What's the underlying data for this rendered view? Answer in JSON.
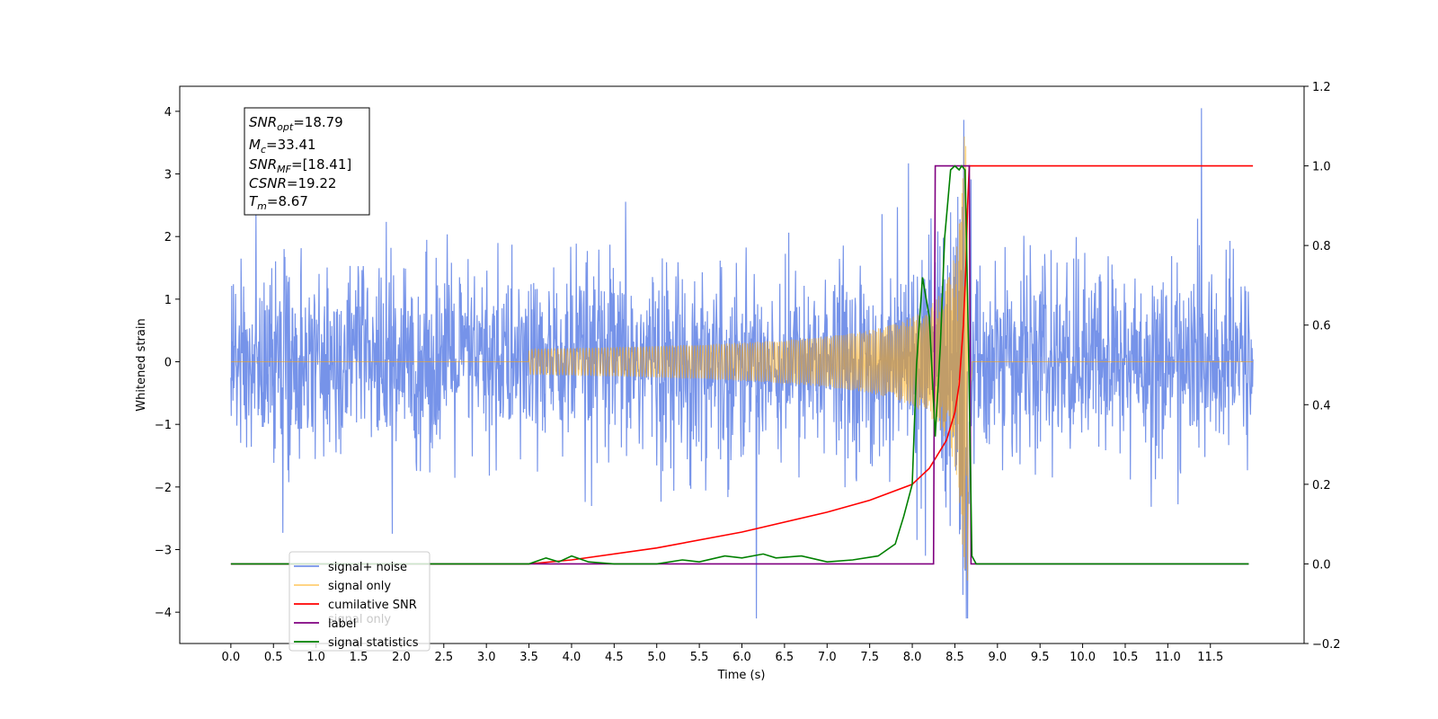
{
  "chart_data": {
    "type": "line",
    "xlabel": "Time (s)",
    "ylabel": "Whitened strain",
    "xlim": [
      -0.6,
      12.6
    ],
    "ylim": [
      -4.5,
      4.4
    ],
    "y2lim": [
      -0.2,
      1.2
    ],
    "x_ticks": [
      "0.0",
      "0.5",
      "1.0",
      "1.5",
      "2.0",
      "2.5",
      "3.0",
      "3.5",
      "4.0",
      "4.5",
      "5.0",
      "5.5",
      "6.0",
      "6.5",
      "7.0",
      "7.5",
      "8.0",
      "8.5",
      "9.0",
      "9.5",
      "10.0",
      "10.5",
      "11.0",
      "11.5"
    ],
    "y_ticks": [
      "4",
      "3",
      "2",
      "1",
      "0",
      "−1",
      "−2",
      "−3",
      "−4"
    ],
    "y2_ticks": [
      "1.2",
      "1.0",
      "0.8",
      "0.6",
      "0.4",
      "0.2",
      "0.0",
      "−0.2"
    ],
    "grid": false,
    "legend_position": "lower-left",
    "legend": [
      "signal+ noise",
      "signal only",
      "cumilative SNR",
      "label",
      "signal statistics"
    ],
    "hidden_legend_text": "signal only",
    "annotation": {
      "snr_opt": {
        "main": "SNR",
        "sub": "opt",
        "value": "=18.79"
      },
      "mc": {
        "main": "M",
        "sub": "c",
        "value": "=33.41"
      },
      "snr_mf": {
        "main": "SNR",
        "sub": "MF",
        "value": "=[18.41]"
      },
      "csnr": {
        "main": "CSNR",
        "value": "=19.22"
      },
      "tm": {
        "main": "T",
        "sub": "m",
        "value": "=8.67"
      }
    },
    "series": [
      {
        "name": "signal+ noise",
        "axis": "left",
        "color": "#4169e1",
        "description": "whitened noise plus injected chirp, sampled 0–12 s, amplitude approx ±2 with spikes to ±3.8"
      },
      {
        "name": "signal only",
        "axis": "left",
        "color": "#ffa500",
        "chirp_start": 3.5,
        "merger_time": 8.65,
        "peak_amplitude": 3.8,
        "end": 12.0
      },
      {
        "name": "cumilative SNR",
        "axis": "right",
        "color": "#ff0000",
        "x": [
          0.0,
          3.5,
          4.0,
          5.0,
          6.0,
          7.0,
          7.5,
          8.0,
          8.2,
          8.4,
          8.5,
          8.55,
          8.6,
          8.63,
          8.65,
          8.67,
          12.0
        ],
        "y": [
          0.0,
          0.0,
          0.01,
          0.04,
          0.08,
          0.13,
          0.16,
          0.2,
          0.24,
          0.31,
          0.38,
          0.45,
          0.6,
          0.75,
          0.9,
          1.0,
          1.0
        ]
      },
      {
        "name": "label",
        "axis": "right",
        "color": "#800080",
        "x": [
          0.0,
          8.25,
          8.27,
          8.67,
          8.69,
          11.95
        ],
        "y": [
          0.0,
          0.0,
          1.0,
          1.0,
          0.0,
          0.0
        ]
      },
      {
        "name": "signal statistics",
        "axis": "right",
        "color": "#008000",
        "x": [
          0.0,
          3.0,
          3.5,
          3.7,
          3.85,
          4.0,
          4.2,
          4.5,
          5.0,
          5.3,
          5.5,
          5.8,
          6.0,
          6.25,
          6.4,
          6.7,
          7.0,
          7.3,
          7.6,
          7.8,
          7.9,
          8.0,
          8.05,
          8.12,
          8.2,
          8.27,
          8.33,
          8.38,
          8.45,
          8.5,
          8.55,
          8.58,
          8.62,
          8.66,
          8.7,
          8.75,
          11.95
        ],
        "y": [
          0.0,
          0.0,
          0.0,
          0.015,
          0.005,
          0.02,
          0.005,
          0.0,
          0.0,
          0.01,
          0.005,
          0.02,
          0.015,
          0.025,
          0.015,
          0.02,
          0.005,
          0.01,
          0.02,
          0.05,
          0.12,
          0.2,
          0.5,
          0.72,
          0.62,
          0.32,
          0.55,
          0.82,
          0.99,
          1.0,
          0.99,
          1.0,
          0.99,
          0.55,
          0.02,
          0.0,
          0.0
        ]
      }
    ]
  }
}
